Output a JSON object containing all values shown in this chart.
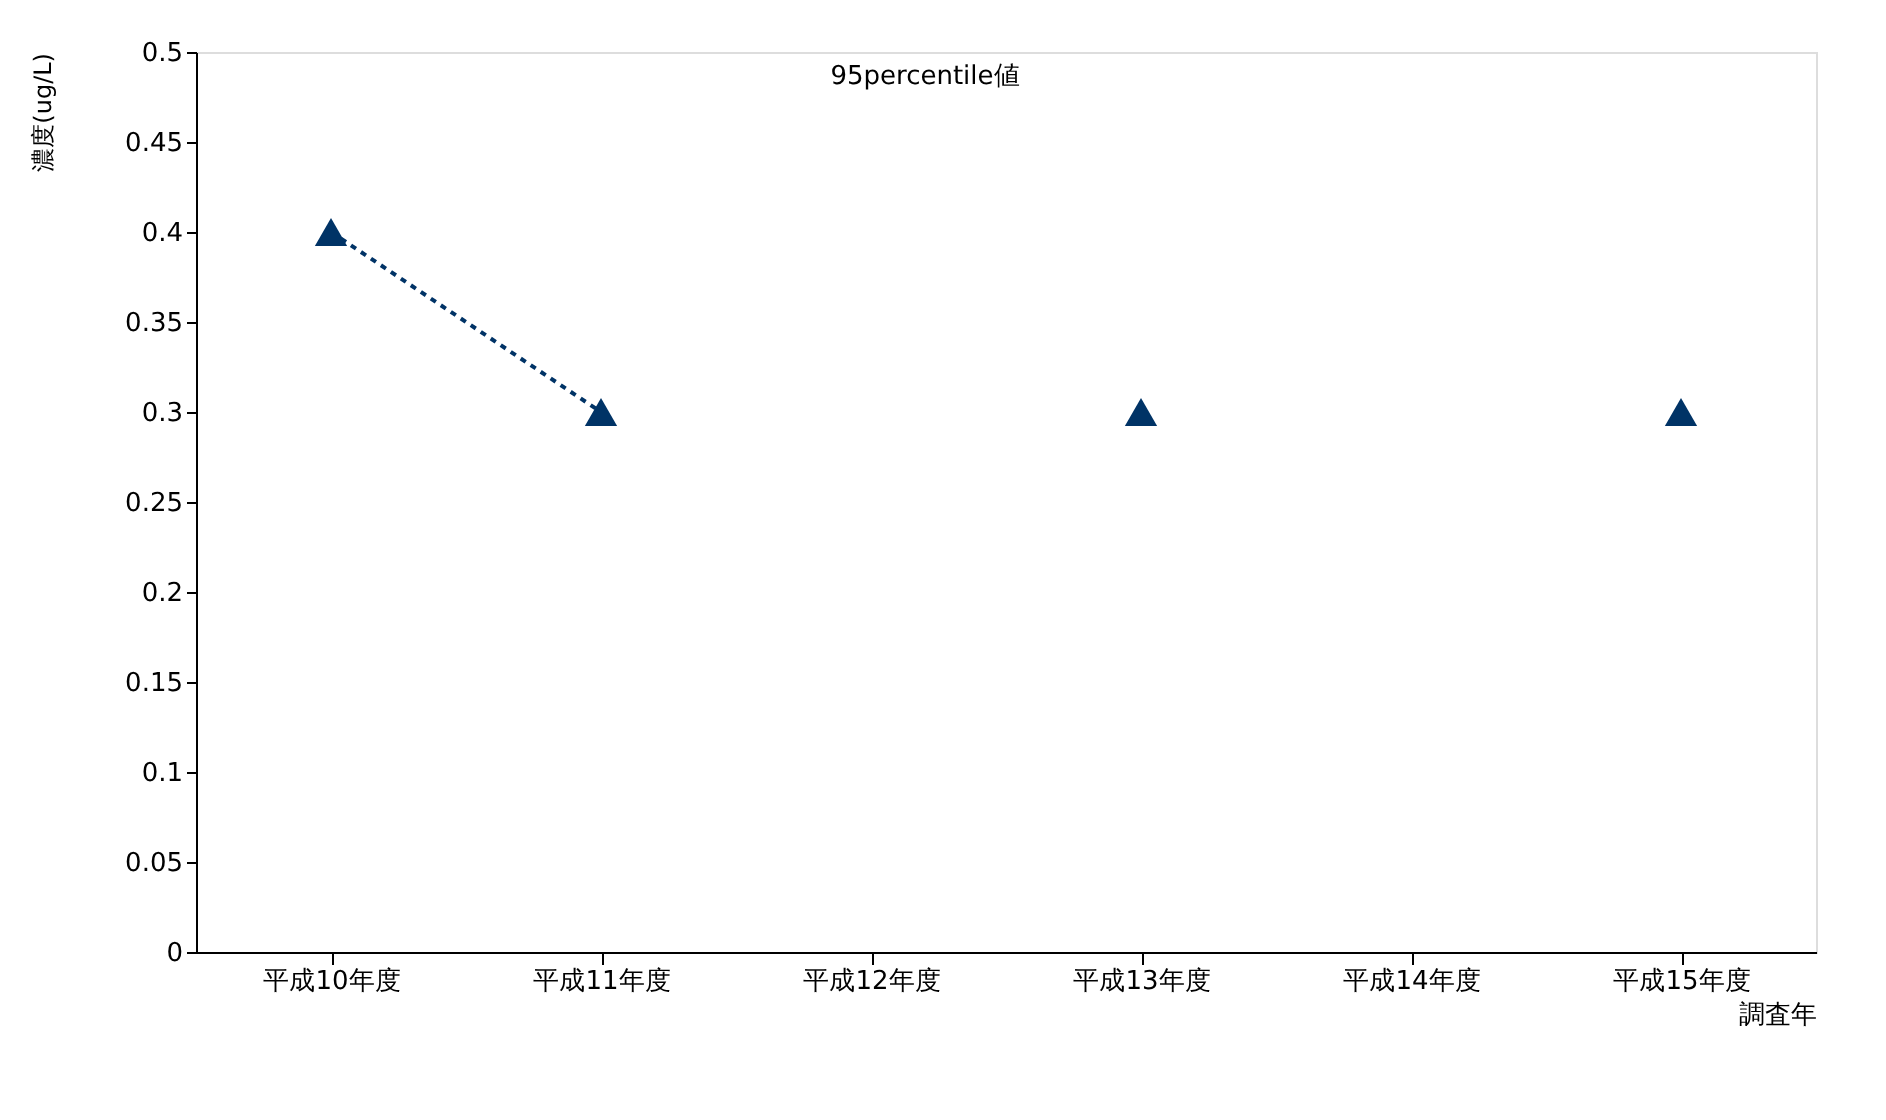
{
  "chart_data": {
    "type": "line",
    "title": "95percentile値",
    "ylabel": "濃度(ug/L)",
    "xlabel": "調査年",
    "categories": [
      "平成10年度",
      "平成11年度",
      "平成12年度",
      "平成13年度",
      "平成14年度",
      "平成15年度"
    ],
    "series": [
      {
        "color": "#003366",
        "values": [
          0.4,
          0.3,
          null,
          0.3,
          null,
          0.3
        ]
      }
    ],
    "ylim": [
      0,
      0.5
    ],
    "yticks": [
      0,
      0.05,
      0.1,
      0.15,
      0.2,
      0.25,
      0.3,
      0.35,
      0.4,
      0.45,
      0.5
    ],
    "marker": "triangle",
    "line_style": "dotted"
  }
}
